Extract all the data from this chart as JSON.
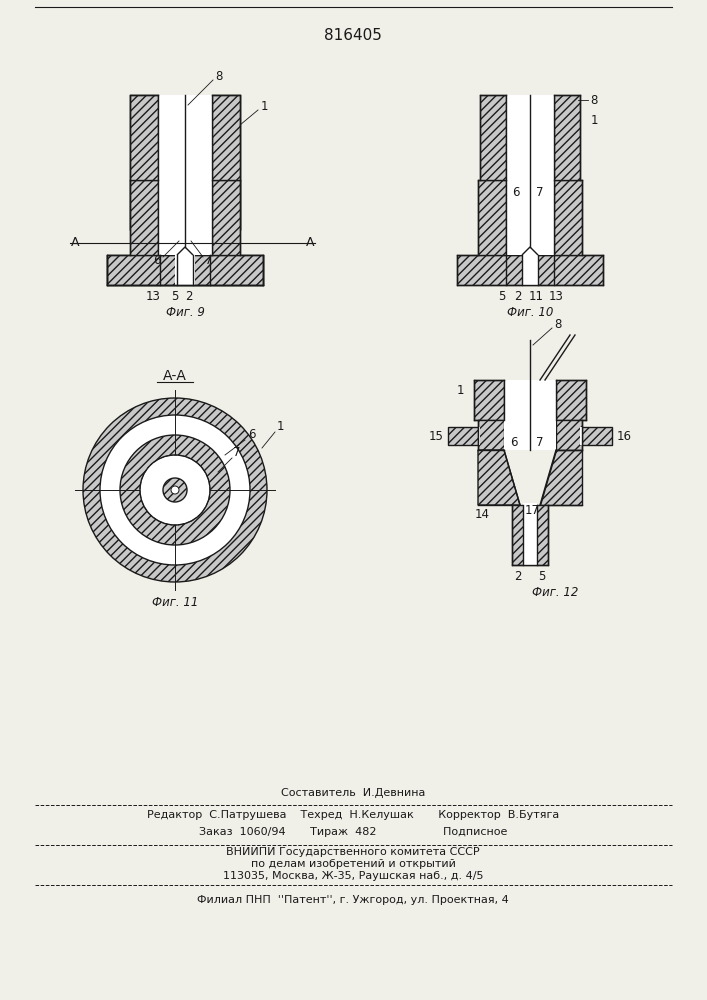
{
  "title_number": "816405",
  "background_color": "#f0efe8",
  "fig9_caption": "Фиг. 9",
  "fig10_caption": "Фиг. 10",
  "fig11_caption": "Фиг. 11",
  "fig12_caption": "Фиг. 12",
  "aa_label": "А-А",
  "hatch_pattern": "////",
  "line_color": "#1a1a1a",
  "hatch_facecolor": "#c8c8c8",
  "fill_color": "#ffffff",
  "footer_line1": "Составитель  И.Девнина",
  "footer_line2": "Редактор  С.Патрушева    Техред  Н.Келушак       Корректор  В.Бутяга",
  "footer_line3": "Заказ  1060/94       Тираж  482                   Подписное",
  "footer_line4": "ВНИИПИ Государственного комитета СССР",
  "footer_line5": "по делам изобретений и открытий",
  "footer_line6": "113035, Москва, Ж-35, Раушская наб., д. 4/5",
  "footer_line7": "Филиал ПНП  ''Патент'', г. Ужгород, ул. Проектная, 4"
}
